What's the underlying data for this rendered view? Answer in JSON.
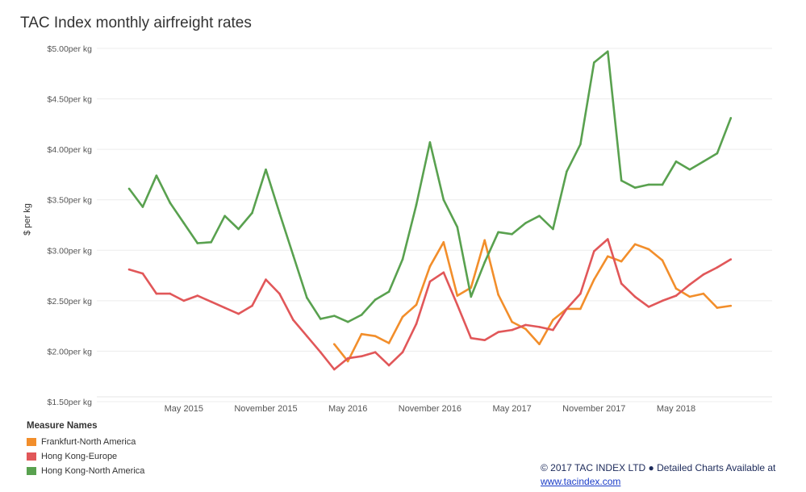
{
  "title": "TAC Index monthly airfreight rates",
  "legend_title": "Measure Names",
  "footer": {
    "copyright": "© 2017 TAC INDEX LTD ● Detailed Charts Available at",
    "link": "www.tacindex.com"
  },
  "chart_data": {
    "type": "line",
    "ylabel": "$ per kg",
    "ylim": [
      1.5,
      5.0
    ],
    "y_ticks": [
      1.5,
      2.0,
      2.5,
      3.0,
      3.5,
      4.0,
      4.5,
      5.0
    ],
    "y_tick_labels": [
      "$1.50per kg",
      "$2.00per kg",
      "$2.50per kg",
      "$3.00per kg",
      "$3.50per kg",
      "$4.00per kg",
      "$4.50per kg",
      "$5.00per kg"
    ],
    "x_ticks": [
      "2015-05",
      "2015-11",
      "2016-05",
      "2016-11",
      "2017-05",
      "2017-11",
      "2018-05"
    ],
    "x_tick_labels": [
      "May 2015",
      "November 2015",
      "May 2016",
      "November 2016",
      "May 2017",
      "November 2017",
      "May 2018"
    ],
    "x": [
      "2015-01",
      "2015-02",
      "2015-03",
      "2015-04",
      "2015-05",
      "2015-06",
      "2015-07",
      "2015-08",
      "2015-09",
      "2015-10",
      "2015-11",
      "2015-12",
      "2016-01",
      "2016-02",
      "2016-03",
      "2016-04",
      "2016-05",
      "2016-06",
      "2016-07",
      "2016-08",
      "2016-09",
      "2016-10",
      "2016-11",
      "2016-12",
      "2017-01",
      "2017-02",
      "2017-03",
      "2017-04",
      "2017-05",
      "2017-06",
      "2017-07",
      "2017-08",
      "2017-09",
      "2017-10",
      "2017-11",
      "2017-12",
      "2018-01",
      "2018-02",
      "2018-03",
      "2018-04",
      "2018-05",
      "2018-06",
      "2018-07",
      "2018-08",
      "2018-09"
    ],
    "grid": true,
    "legend_position": "bottom-left",
    "series": [
      {
        "name": "Frankfurt-North America",
        "color": "#f28e2b",
        "values": [
          null,
          null,
          null,
          null,
          null,
          null,
          null,
          null,
          null,
          null,
          null,
          null,
          null,
          null,
          null,
          2.07,
          1.9,
          2.17,
          2.15,
          2.08,
          2.34,
          2.46,
          2.84,
          3.08,
          2.55,
          2.63,
          3.1,
          2.56,
          2.29,
          2.22,
          2.07,
          2.31,
          2.42,
          2.42,
          2.71,
          2.94,
          2.89,
          3.06,
          3.01,
          2.9,
          2.62,
          2.54,
          2.57,
          2.43,
          2.45
        ]
      },
      {
        "name": "Hong Kong-Europe",
        "color": "#e15759",
        "values": [
          2.81,
          2.77,
          2.57,
          2.57,
          2.5,
          2.55,
          2.49,
          2.43,
          2.37,
          2.45,
          2.71,
          2.57,
          2.31,
          2.15,
          1.99,
          1.82,
          1.93,
          1.95,
          1.99,
          1.86,
          1.99,
          2.27,
          2.69,
          2.78,
          2.46,
          2.13,
          2.11,
          2.19,
          2.21,
          2.26,
          2.24,
          2.21,
          2.42,
          2.57,
          2.99,
          3.11,
          2.67,
          2.54,
          2.44,
          2.5,
          2.55,
          2.66,
          2.76,
          2.83,
          2.91
        ]
      },
      {
        "name": "Hong Kong-North America",
        "color": "#59a14f",
        "values": [
          3.61,
          3.43,
          3.74,
          3.47,
          3.27,
          3.07,
          3.08,
          3.34,
          3.21,
          3.37,
          3.8,
          3.37,
          2.95,
          2.53,
          2.32,
          2.35,
          2.29,
          2.36,
          2.51,
          2.59,
          2.91,
          3.45,
          4.07,
          3.5,
          3.23,
          2.54,
          2.88,
          3.18,
          3.16,
          3.27,
          3.34,
          3.21,
          3.78,
          4.05,
          4.86,
          4.97,
          3.69,
          3.62,
          3.65,
          3.65,
          3.88,
          3.8,
          3.88,
          3.96,
          4.31
        ]
      }
    ]
  }
}
